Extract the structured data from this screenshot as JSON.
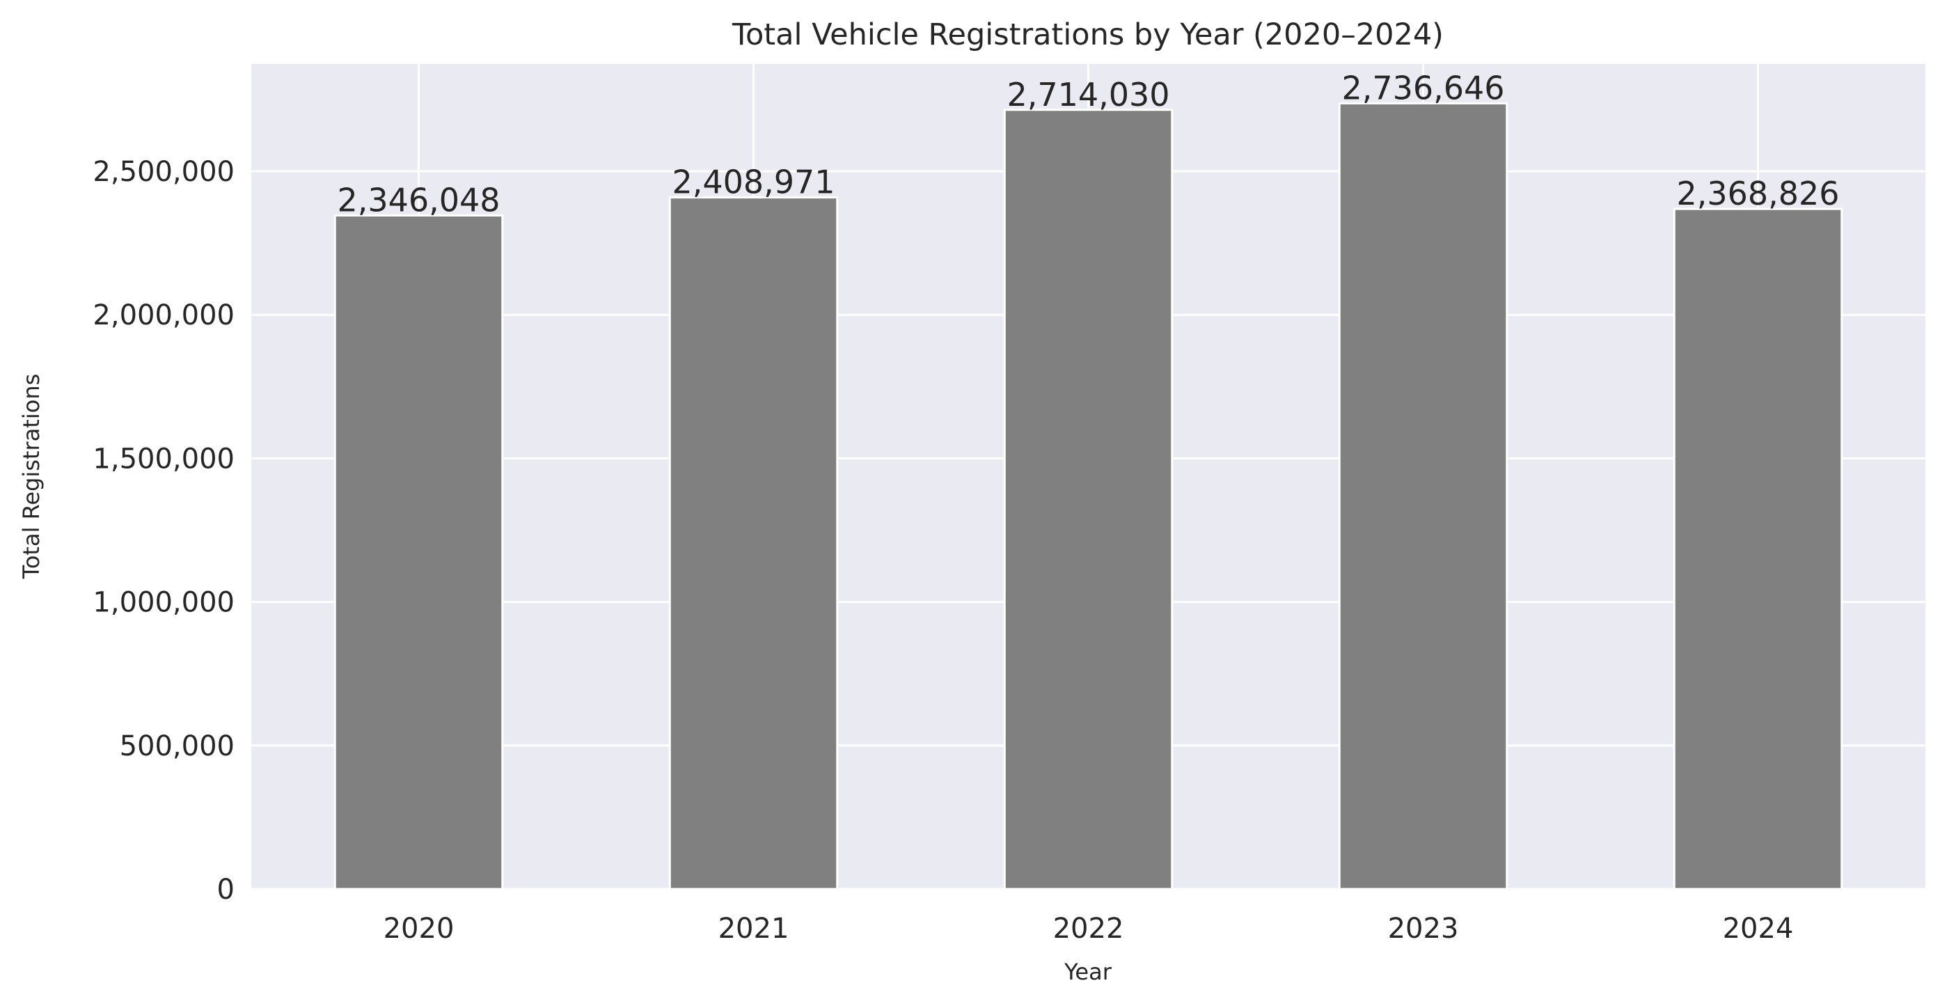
{
  "chart_data": {
    "type": "bar",
    "title": "Total Vehicle Registrations by Year (2020–2024)",
    "xlabel": "Year",
    "ylabel": "Total Registrations",
    "categories": [
      "2020",
      "2021",
      "2022",
      "2023",
      "2024"
    ],
    "values": [
      2346048,
      2408971,
      2714030,
      2736646,
      2368826
    ],
    "data_labels": [
      "2,346,048",
      "2,408,971",
      "2,714,030",
      "2,736,646",
      "2,368,826"
    ],
    "ylim": [
      0,
      2873478
    ],
    "yticks": [
      0,
      500000,
      1000000,
      1500000,
      2000000,
      2500000
    ],
    "ytick_labels": [
      "0",
      "500,000",
      "1,000,000",
      "1,500,000",
      "2,000,000",
      "2,500,000"
    ],
    "grid": true,
    "legend": "none",
    "colors": {
      "bar": "#808080",
      "bar_edge": "#ffffff",
      "plot_background": "#eaeaf2",
      "grid": "#ffffff",
      "text": "#262626"
    }
  }
}
